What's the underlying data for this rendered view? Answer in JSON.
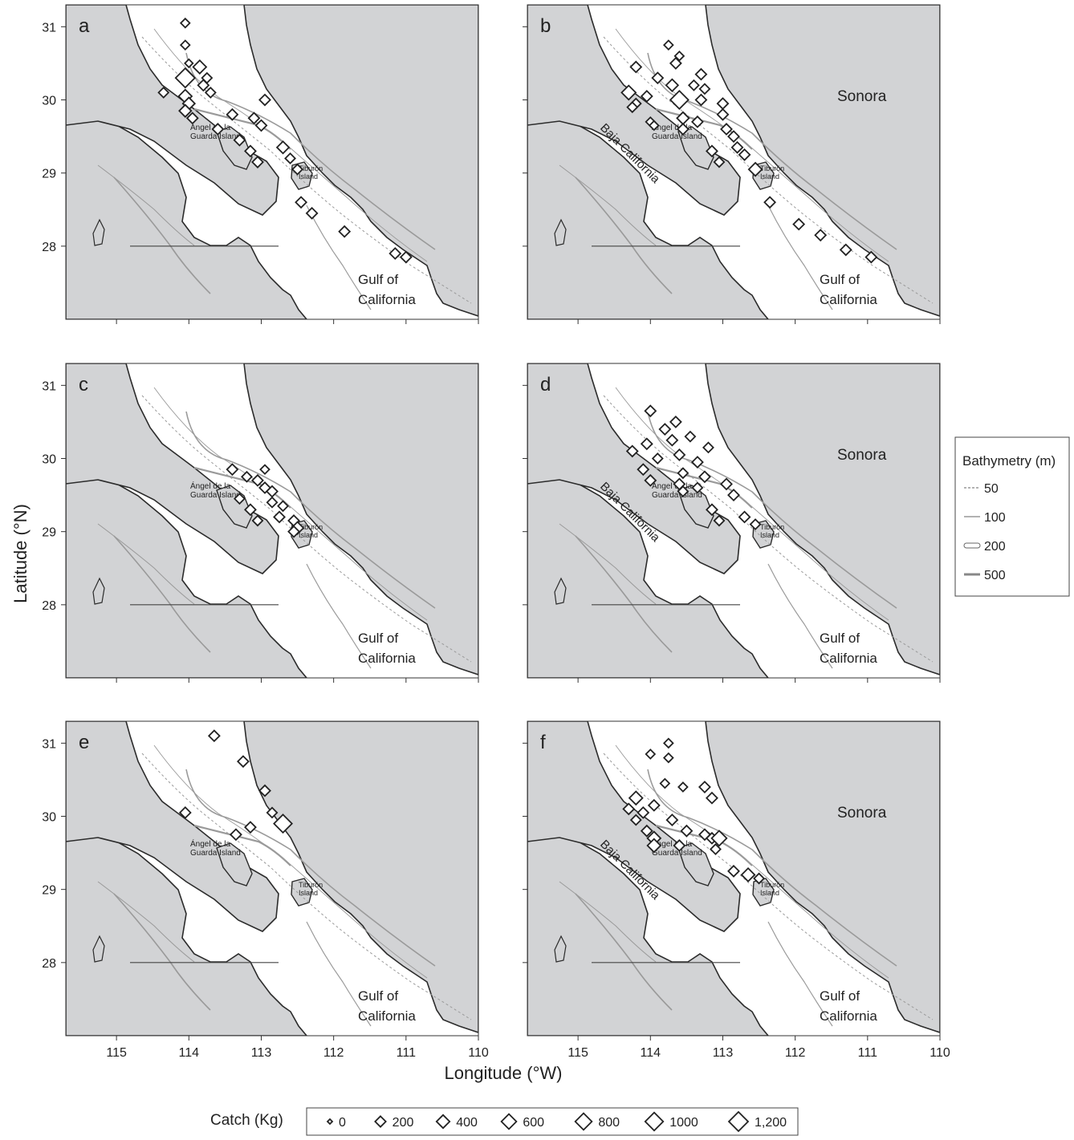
{
  "axes": {
    "ylabel": "Latitude (°N)",
    "xlabel": "Longitude (°W)",
    "lat_ticks": [
      "31",
      "30",
      "29",
      "28"
    ],
    "lon_ticks": [
      "115",
      "114",
      "113",
      "112",
      "111",
      "110"
    ]
  },
  "place_names": {
    "angel_line1": "Ángel de la",
    "angel_line2": "Guarda Island",
    "tiburon_line1": "Tiburón",
    "tiburon_line2": "Island",
    "gulf_line1": "Gulf of",
    "gulf_line2": "California",
    "sonora": "Sonora",
    "baja": "Baja California"
  },
  "colors": {
    "land": "#d2d3d5",
    "sea": "#ffffff",
    "coast": "#2b2b2b",
    "isobath": "#9a9a9a",
    "marker": "#222222"
  },
  "panels": [
    {
      "label": "a",
      "show_sonora": false,
      "show_baja": false,
      "stations": [
        {
          "lon": 114.05,
          "lat": 31.05,
          "catch": 100
        },
        {
          "lon": 114.05,
          "lat": 30.75,
          "catch": 100
        },
        {
          "lon": 114.0,
          "lat": 30.5,
          "catch": 60
        },
        {
          "lon": 113.85,
          "lat": 30.45,
          "catch": 400
        },
        {
          "lon": 114.05,
          "lat": 30.3,
          "catch": 1200
        },
        {
          "lon": 113.75,
          "lat": 30.3,
          "catch": 150
        },
        {
          "lon": 113.8,
          "lat": 30.2,
          "catch": 200
        },
        {
          "lon": 114.35,
          "lat": 30.1,
          "catch": 150
        },
        {
          "lon": 113.7,
          "lat": 30.1,
          "catch": 150
        },
        {
          "lon": 114.05,
          "lat": 30.05,
          "catch": 400
        },
        {
          "lon": 114.0,
          "lat": 29.95,
          "catch": 300
        },
        {
          "lon": 112.95,
          "lat": 30.0,
          "catch": 200
        },
        {
          "lon": 114.05,
          "lat": 29.85,
          "catch": 300
        },
        {
          "lon": 113.4,
          "lat": 29.8,
          "catch": 200
        },
        {
          "lon": 113.95,
          "lat": 29.75,
          "catch": 200
        },
        {
          "lon": 113.1,
          "lat": 29.75,
          "catch": 200
        },
        {
          "lon": 113.6,
          "lat": 29.6,
          "catch": 200
        },
        {
          "lon": 113.0,
          "lat": 29.65,
          "catch": 200
        },
        {
          "lon": 113.3,
          "lat": 29.45,
          "catch": 200
        },
        {
          "lon": 113.15,
          "lat": 29.3,
          "catch": 200
        },
        {
          "lon": 112.7,
          "lat": 29.35,
          "catch": 300
        },
        {
          "lon": 113.05,
          "lat": 29.15,
          "catch": 200
        },
        {
          "lon": 112.6,
          "lat": 29.2,
          "catch": 150
        },
        {
          "lon": 112.5,
          "lat": 29.05,
          "catch": 150
        },
        {
          "lon": 112.45,
          "lat": 28.6,
          "catch": 200
        },
        {
          "lon": 112.3,
          "lat": 28.45,
          "catch": 200
        },
        {
          "lon": 111.85,
          "lat": 28.2,
          "catch": 200
        },
        {
          "lon": 111.15,
          "lat": 27.9,
          "catch": 200
        },
        {
          "lon": 111.0,
          "lat": 27.85,
          "catch": 200
        }
      ]
    },
    {
      "label": "b",
      "show_sonora": true,
      "show_baja": true,
      "stations": [
        {
          "lon": 113.75,
          "lat": 30.75,
          "catch": 100
        },
        {
          "lon": 113.6,
          "lat": 30.6,
          "catch": 100
        },
        {
          "lon": 113.65,
          "lat": 30.5,
          "catch": 200
        },
        {
          "lon": 114.2,
          "lat": 30.45,
          "catch": 200
        },
        {
          "lon": 113.3,
          "lat": 30.35,
          "catch": 200
        },
        {
          "lon": 113.9,
          "lat": 30.3,
          "catch": 200
        },
        {
          "lon": 113.7,
          "lat": 30.2,
          "catch": 300
        },
        {
          "lon": 113.4,
          "lat": 30.2,
          "catch": 150
        },
        {
          "lon": 113.25,
          "lat": 30.15,
          "catch": 150
        },
        {
          "lon": 114.3,
          "lat": 30.1,
          "catch": 500
        },
        {
          "lon": 114.05,
          "lat": 30.05,
          "catch": 200
        },
        {
          "lon": 113.6,
          "lat": 30.0,
          "catch": 1000
        },
        {
          "lon": 113.3,
          "lat": 30.0,
          "catch": 200
        },
        {
          "lon": 114.2,
          "lat": 29.95,
          "catch": 150
        },
        {
          "lon": 114.25,
          "lat": 29.9,
          "catch": 150
        },
        {
          "lon": 113.0,
          "lat": 29.95,
          "catch": 200
        },
        {
          "lon": 113.0,
          "lat": 29.8,
          "catch": 200
        },
        {
          "lon": 113.55,
          "lat": 29.75,
          "catch": 300
        },
        {
          "lon": 113.35,
          "lat": 29.7,
          "catch": 200
        },
        {
          "lon": 114.0,
          "lat": 29.7,
          "catch": 100
        },
        {
          "lon": 113.95,
          "lat": 29.65,
          "catch": 100
        },
        {
          "lon": 113.55,
          "lat": 29.6,
          "catch": 200
        },
        {
          "lon": 112.95,
          "lat": 29.6,
          "catch": 200
        },
        {
          "lon": 112.85,
          "lat": 29.5,
          "catch": 200
        },
        {
          "lon": 112.8,
          "lat": 29.35,
          "catch": 200
        },
        {
          "lon": 113.15,
          "lat": 29.3,
          "catch": 200
        },
        {
          "lon": 112.7,
          "lat": 29.25,
          "catch": 200
        },
        {
          "lon": 113.05,
          "lat": 29.15,
          "catch": 150
        },
        {
          "lon": 112.55,
          "lat": 29.05,
          "catch": 400
        },
        {
          "lon": 112.35,
          "lat": 28.6,
          "catch": 200
        },
        {
          "lon": 111.95,
          "lat": 28.3,
          "catch": 200
        },
        {
          "lon": 111.65,
          "lat": 28.15,
          "catch": 200
        },
        {
          "lon": 111.3,
          "lat": 27.95,
          "catch": 200
        },
        {
          "lon": 110.95,
          "lat": 27.85,
          "catch": 200
        }
      ]
    },
    {
      "label": "c",
      "show_sonora": false,
      "show_baja": false,
      "stations": [
        {
          "lon": 113.4,
          "lat": 29.85,
          "catch": 200
        },
        {
          "lon": 112.95,
          "lat": 29.85,
          "catch": 100
        },
        {
          "lon": 113.2,
          "lat": 29.75,
          "catch": 150
        },
        {
          "lon": 113.05,
          "lat": 29.7,
          "catch": 200
        },
        {
          "lon": 112.95,
          "lat": 29.6,
          "catch": 200
        },
        {
          "lon": 112.85,
          "lat": 29.55,
          "catch": 200
        },
        {
          "lon": 113.3,
          "lat": 29.45,
          "catch": 150
        },
        {
          "lon": 112.85,
          "lat": 29.4,
          "catch": 150
        },
        {
          "lon": 112.7,
          "lat": 29.35,
          "catch": 150
        },
        {
          "lon": 113.15,
          "lat": 29.3,
          "catch": 200
        },
        {
          "lon": 112.75,
          "lat": 29.2,
          "catch": 200
        },
        {
          "lon": 113.05,
          "lat": 29.15,
          "catch": 150
        },
        {
          "lon": 112.55,
          "lat": 29.15,
          "catch": 200
        },
        {
          "lon": 112.5,
          "lat": 29.05,
          "catch": 300
        },
        {
          "lon": 112.55,
          "lat": 29.0,
          "catch": 200
        }
      ]
    },
    {
      "label": "d",
      "show_sonora": true,
      "show_baja": true,
      "stations": [
        {
          "lon": 114.0,
          "lat": 30.65,
          "catch": 200
        },
        {
          "lon": 113.65,
          "lat": 30.5,
          "catch": 200
        },
        {
          "lon": 113.8,
          "lat": 30.4,
          "catch": 200
        },
        {
          "lon": 113.45,
          "lat": 30.3,
          "catch": 150
        },
        {
          "lon": 113.7,
          "lat": 30.25,
          "catch": 200
        },
        {
          "lon": 114.05,
          "lat": 30.2,
          "catch": 200
        },
        {
          "lon": 113.2,
          "lat": 30.15,
          "catch": 150
        },
        {
          "lon": 114.25,
          "lat": 30.1,
          "catch": 200
        },
        {
          "lon": 113.6,
          "lat": 30.05,
          "catch": 200
        },
        {
          "lon": 113.9,
          "lat": 30.0,
          "catch": 150
        },
        {
          "lon": 113.35,
          "lat": 29.95,
          "catch": 200
        },
        {
          "lon": 114.1,
          "lat": 29.85,
          "catch": 200
        },
        {
          "lon": 113.55,
          "lat": 29.8,
          "catch": 150
        },
        {
          "lon": 113.25,
          "lat": 29.75,
          "catch": 200
        },
        {
          "lon": 114.0,
          "lat": 29.7,
          "catch": 200
        },
        {
          "lon": 113.6,
          "lat": 29.65,
          "catch": 200
        },
        {
          "lon": 112.95,
          "lat": 29.65,
          "catch": 200
        },
        {
          "lon": 113.35,
          "lat": 29.6,
          "catch": 150
        },
        {
          "lon": 113.55,
          "lat": 29.55,
          "catch": 150
        },
        {
          "lon": 112.85,
          "lat": 29.5,
          "catch": 200
        },
        {
          "lon": 113.15,
          "lat": 29.3,
          "catch": 200
        },
        {
          "lon": 112.7,
          "lat": 29.2,
          "catch": 200
        },
        {
          "lon": 113.05,
          "lat": 29.15,
          "catch": 150
        },
        {
          "lon": 112.55,
          "lat": 29.1,
          "catch": 150
        }
      ]
    },
    {
      "label": "e",
      "show_sonora": false,
      "show_baja": false,
      "stations": [
        {
          "lon": 113.65,
          "lat": 31.1,
          "catch": 200
        },
        {
          "lon": 113.25,
          "lat": 30.75,
          "catch": 200
        },
        {
          "lon": 112.95,
          "lat": 30.35,
          "catch": 200
        },
        {
          "lon": 112.85,
          "lat": 30.05,
          "catch": 150
        },
        {
          "lon": 114.05,
          "lat": 30.05,
          "catch": 200
        },
        {
          "lon": 112.7,
          "lat": 29.9,
          "catch": 1000
        },
        {
          "lon": 113.15,
          "lat": 29.85,
          "catch": 200
        },
        {
          "lon": 113.35,
          "lat": 29.75,
          "catch": 200
        }
      ]
    },
    {
      "label": "f",
      "show_sonora": true,
      "show_baja": true,
      "stations": [
        {
          "lon": 113.75,
          "lat": 31.0,
          "catch": 100
        },
        {
          "lon": 114.0,
          "lat": 30.85,
          "catch": 100
        },
        {
          "lon": 113.75,
          "lat": 30.8,
          "catch": 100
        },
        {
          "lon": 113.8,
          "lat": 30.45,
          "catch": 100
        },
        {
          "lon": 113.55,
          "lat": 30.4,
          "catch": 100
        },
        {
          "lon": 113.25,
          "lat": 30.4,
          "catch": 200
        },
        {
          "lon": 114.2,
          "lat": 30.25,
          "catch": 400
        },
        {
          "lon": 113.15,
          "lat": 30.25,
          "catch": 200
        },
        {
          "lon": 113.95,
          "lat": 30.15,
          "catch": 200
        },
        {
          "lon": 114.3,
          "lat": 30.1,
          "catch": 200
        },
        {
          "lon": 114.1,
          "lat": 30.05,
          "catch": 200
        },
        {
          "lon": 114.2,
          "lat": 29.95,
          "catch": 150
        },
        {
          "lon": 113.7,
          "lat": 29.95,
          "catch": 200
        },
        {
          "lon": 114.05,
          "lat": 29.8,
          "catch": 200
        },
        {
          "lon": 113.5,
          "lat": 29.8,
          "catch": 200
        },
        {
          "lon": 113.25,
          "lat": 29.75,
          "catch": 200
        },
        {
          "lon": 113.95,
          "lat": 29.7,
          "catch": 400
        },
        {
          "lon": 113.15,
          "lat": 29.7,
          "catch": 200
        },
        {
          "lon": 113.05,
          "lat": 29.7,
          "catch": 600
        },
        {
          "lon": 113.95,
          "lat": 29.6,
          "catch": 400
        },
        {
          "lon": 113.6,
          "lat": 29.6,
          "catch": 200
        },
        {
          "lon": 113.1,
          "lat": 29.55,
          "catch": 150
        },
        {
          "lon": 112.85,
          "lat": 29.25,
          "catch": 200
        },
        {
          "lon": 112.65,
          "lat": 29.2,
          "catch": 400
        },
        {
          "lon": 112.5,
          "lat": 29.15,
          "catch": 150
        }
      ]
    }
  ],
  "bathymetry_legend": {
    "title": "Bathymetry (m)",
    "items": [
      {
        "style": "dashed",
        "label": "50"
      },
      {
        "style": "thin",
        "label": "100"
      },
      {
        "style": "double",
        "label": "200"
      },
      {
        "style": "thick",
        "label": "500"
      }
    ]
  },
  "catch_legend": {
    "title": "Catch (Kg)",
    "items": [
      {
        "value": 0,
        "label": "0"
      },
      {
        "value": 200,
        "label": "200"
      },
      {
        "value": 400,
        "label": "400"
      },
      {
        "value": 600,
        "label": "600"
      },
      {
        "value": 800,
        "label": "800"
      },
      {
        "value": 1000,
        "label": "1000"
      },
      {
        "value": 1200,
        "label": "1,200"
      }
    ]
  }
}
